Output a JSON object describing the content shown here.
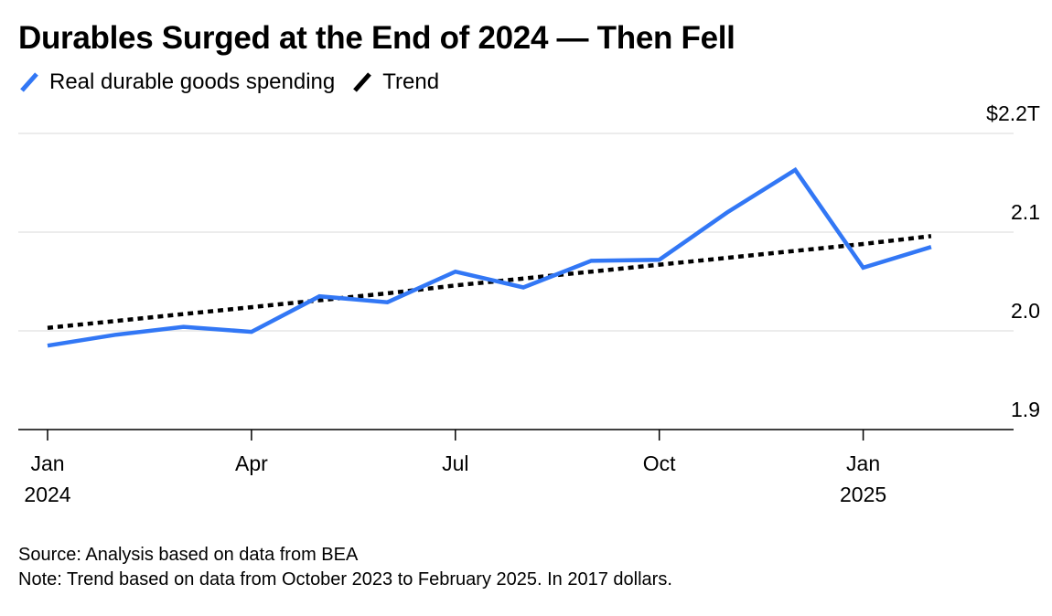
{
  "chart_data": {
    "type": "line",
    "title": "Durables Surged at the End of 2024 — Then Fell",
    "x": [
      "2024-01",
      "2024-02",
      "2024-03",
      "2024-04",
      "2024-05",
      "2024-06",
      "2024-07",
      "2024-08",
      "2024-09",
      "2024-10",
      "2024-11",
      "2024-12",
      "2025-01",
      "2025-02"
    ],
    "series": [
      {
        "name": "Real durable goods spending",
        "color": "#3277f5",
        "values": [
          1.985,
          1.996,
          2.004,
          1.999,
          2.035,
          2.029,
          2.06,
          2.044,
          2.071,
          2.072,
          2.12,
          2.163,
          2.064,
          2.085
        ]
      },
      {
        "name": "Trend",
        "color": "#000000",
        "style": "dotted",
        "values": [
          2.003,
          2.01,
          2.017,
          2.024,
          2.031,
          2.038,
          2.046,
          2.053,
          2.06,
          2.067,
          2.074,
          2.081,
          2.088,
          2.096
        ]
      }
    ],
    "ylim": [
      1.9,
      2.2
    ],
    "y_ticks": [
      {
        "value": 2.2,
        "label": "$2.2T"
      },
      {
        "value": 2.1,
        "label": "2.1"
      },
      {
        "value": 2.0,
        "label": "2.0"
      },
      {
        "value": 1.9,
        "label": "1.9"
      }
    ],
    "x_ticks": [
      {
        "x": "2024-01",
        "label": "Jan",
        "year": "2024"
      },
      {
        "x": "2024-04",
        "label": "Apr",
        "year": ""
      },
      {
        "x": "2024-07",
        "label": "Jul",
        "year": ""
      },
      {
        "x": "2024-10",
        "label": "Oct",
        "year": ""
      },
      {
        "x": "2025-01",
        "label": "Jan",
        "year": "2025"
      }
    ],
    "x_axis_end": "2025-03",
    "grid": true,
    "legend_position": "top-left",
    "xlabel": "",
    "ylabel": ""
  },
  "footer": {
    "source": "Source: Analysis based on data from BEA",
    "note": "Note: Trend based on data from October 2023 to February 2025. In 2017 dollars."
  }
}
